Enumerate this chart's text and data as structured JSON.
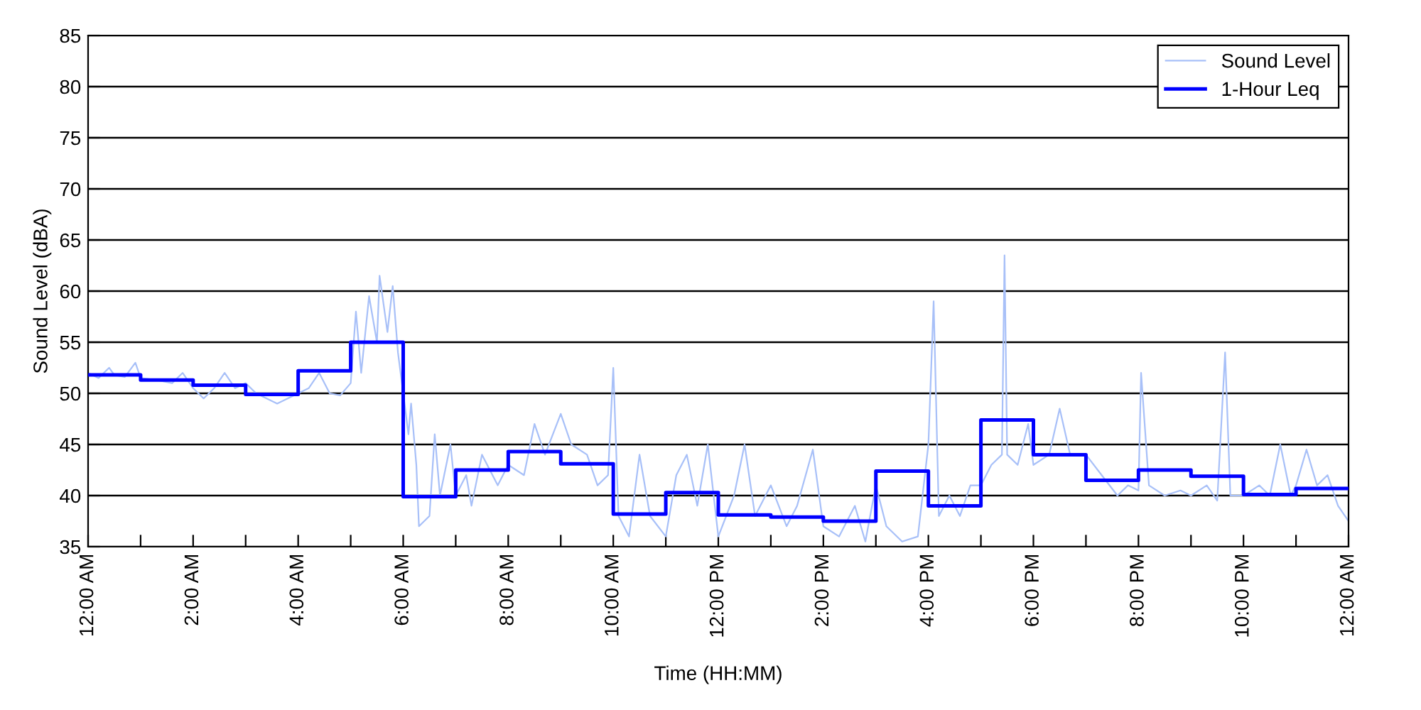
{
  "chart_data": {
    "type": "line",
    "xlabel": "Time (HH:MM)",
    "ylabel": "Sound Level (dBA)",
    "xlim": [
      0,
      24
    ],
    "ylim": [
      35,
      85
    ],
    "xticks": [
      {
        "value": 0,
        "label": "12:00 AM"
      },
      {
        "value": 1,
        "label": null
      },
      {
        "value": 2,
        "label": "2:00 AM"
      },
      {
        "value": 3,
        "label": null
      },
      {
        "value": 4,
        "label": "4:00 AM"
      },
      {
        "value": 5,
        "label": null
      },
      {
        "value": 6,
        "label": "6:00 AM"
      },
      {
        "value": 7,
        "label": null
      },
      {
        "value": 8,
        "label": "8:00 AM"
      },
      {
        "value": 9,
        "label": null
      },
      {
        "value": 10,
        "label": "10:00 AM"
      },
      {
        "value": 11,
        "label": null
      },
      {
        "value": 12,
        "label": "12:00 PM"
      },
      {
        "value": 13,
        "label": null
      },
      {
        "value": 14,
        "label": "2:00 PM"
      },
      {
        "value": 15,
        "label": null
      },
      {
        "value": 16,
        "label": "4:00 PM"
      },
      {
        "value": 17,
        "label": null
      },
      {
        "value": 18,
        "label": "6:00 PM"
      },
      {
        "value": 19,
        "label": null
      },
      {
        "value": 20,
        "label": "8:00 PM"
      },
      {
        "value": 21,
        "label": null
      },
      {
        "value": 22,
        "label": "10:00 PM"
      },
      {
        "value": 23,
        "label": null
      },
      {
        "value": 24,
        "label": "12:00 AM"
      }
    ],
    "yticks": [
      35,
      40,
      45,
      50,
      55,
      60,
      65,
      70,
      75,
      80,
      85
    ],
    "grid": "y",
    "legend": "top right",
    "series": [
      {
        "name": "Sound Level",
        "color": "#a8c0f8",
        "x": [
          0,
          0.2,
          0.4,
          0.5,
          0.7,
          0.9,
          1.0,
          1.3,
          1.6,
          1.8,
          2.0,
          2.2,
          2.4,
          2.6,
          2.8,
          3.0,
          3.2,
          3.4,
          3.6,
          3.8,
          4.0,
          4.2,
          4.4,
          4.6,
          4.8,
          5.0,
          5.1,
          5.2,
          5.35,
          5.5,
          5.55,
          5.7,
          5.8,
          5.9,
          5.95,
          6.1,
          6.15,
          6.25,
          6.3,
          6.5,
          6.6,
          6.7,
          6.9,
          7.0,
          7.2,
          7.3,
          7.5,
          7.8,
          8.0,
          8.3,
          8.5,
          8.7,
          9.0,
          9.2,
          9.5,
          9.7,
          9.9,
          10.0,
          10.1,
          10.3,
          10.5,
          10.7,
          11.0,
          11.2,
          11.4,
          11.6,
          11.8,
          12.0,
          12.3,
          12.5,
          12.7,
          13.0,
          13.3,
          13.5,
          13.8,
          14.0,
          14.3,
          14.6,
          14.8,
          15.0,
          15.2,
          15.5,
          15.8,
          16.0,
          16.1,
          16.2,
          16.4,
          16.6,
          16.8,
          17.0,
          17.2,
          17.4,
          17.45,
          17.5,
          17.7,
          17.9,
          18.0,
          18.3,
          18.5,
          18.7,
          19.0,
          19.3,
          19.6,
          19.8,
          20.0,
          20.05,
          20.2,
          20.5,
          20.8,
          21.0,
          21.3,
          21.5,
          21.65,
          21.75,
          22.0,
          22.3,
          22.5,
          22.7,
          22.9,
          23.0,
          23.2,
          23.4,
          23.6,
          23.8,
          24.0
        ],
        "values": [
          52,
          51.5,
          52.5,
          51.8,
          51.6,
          53,
          51.5,
          51.3,
          51,
          52,
          50.5,
          49.5,
          50.5,
          52,
          50.5,
          51,
          50,
          49.5,
          49,
          49.5,
          50,
          50.5,
          52,
          50,
          49.8,
          51,
          58,
          52,
          59.5,
          55,
          61.5,
          56,
          60.5,
          54,
          52,
          46,
          49,
          43,
          37,
          38,
          46,
          40,
          45,
          40,
          42,
          39,
          44,
          41,
          43,
          42,
          47,
          44,
          48,
          45,
          44,
          41,
          42,
          52.5,
          38,
          36,
          44,
          38,
          36,
          42,
          44,
          39,
          45,
          36,
          40,
          45,
          38,
          41,
          37,
          39,
          44.5,
          37,
          36,
          39,
          35.5,
          41,
          37,
          35.5,
          36,
          45,
          59,
          38,
          40,
          38,
          41,
          41,
          43,
          44,
          63.5,
          44,
          43,
          47,
          43,
          44,
          48.5,
          44,
          44,
          42,
          40,
          41,
          40.5,
          52,
          41,
          40,
          40.5,
          40,
          41,
          39.5,
          54,
          40,
          40,
          41,
          40,
          45,
          40,
          41,
          44.5,
          41,
          42,
          39,
          37.5
        ]
      },
      {
        "name": "1-Hour Leq",
        "type": "step",
        "color": "#0000ff",
        "x": [
          0,
          1,
          2,
          3,
          4,
          5,
          6,
          7,
          8,
          9,
          10,
          11,
          12,
          13,
          14,
          15,
          16,
          17,
          18,
          19,
          20,
          21,
          22,
          23,
          24
        ],
        "values": [
          51.8,
          51.3,
          50.8,
          49.9,
          52.2,
          55.0,
          39.9,
          42.5,
          44.3,
          43.1,
          38.2,
          40.3,
          38.1,
          37.9,
          37.5,
          42.4,
          39.0,
          47.4,
          44.0,
          41.5,
          42.5,
          41.9,
          40.1,
          40.7,
          40.7
        ]
      }
    ]
  }
}
